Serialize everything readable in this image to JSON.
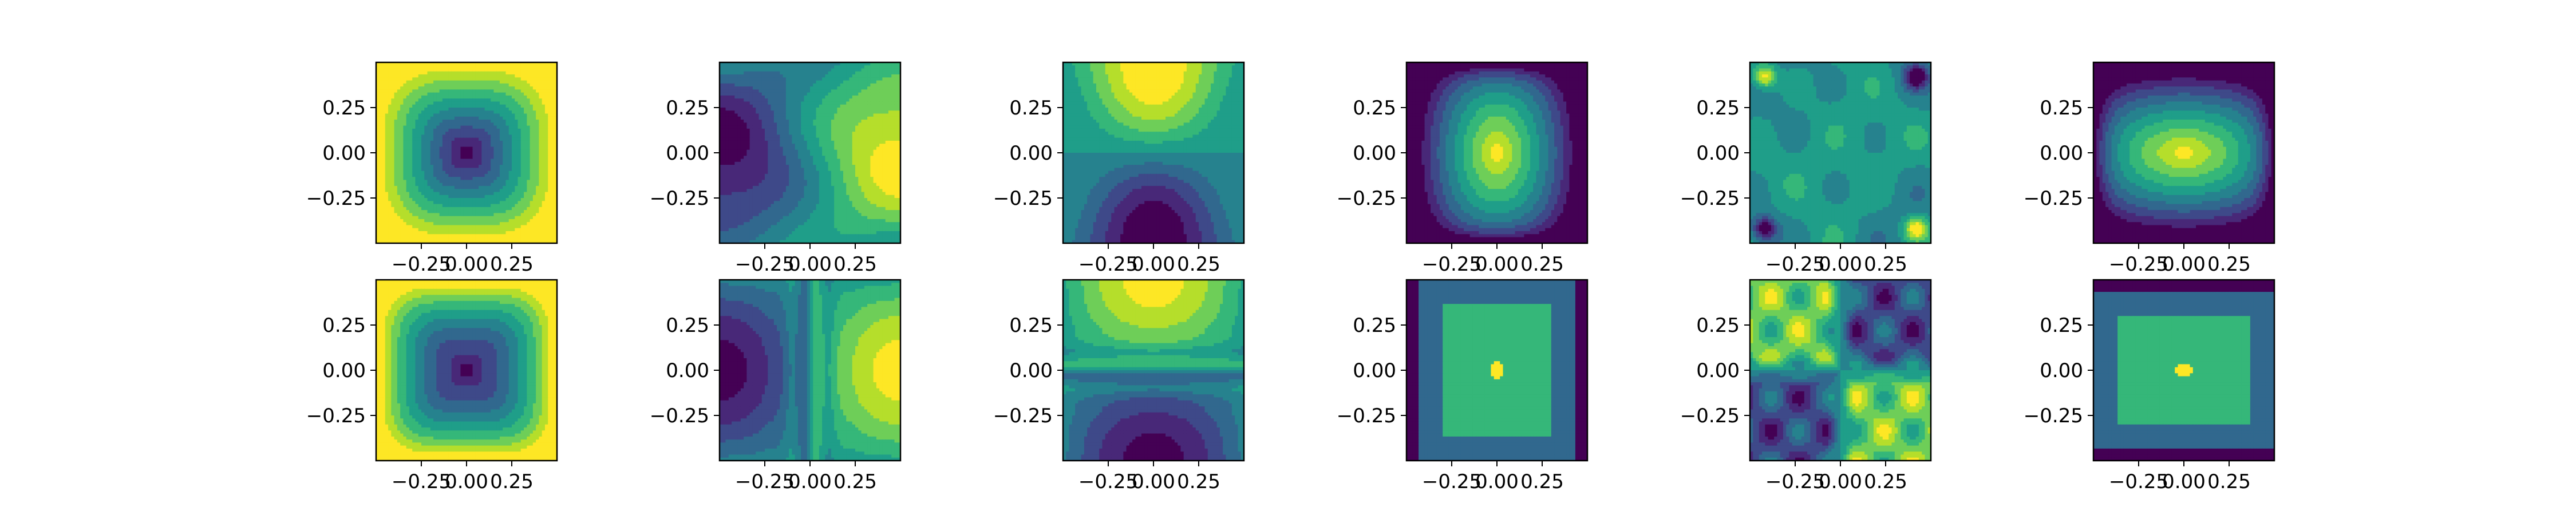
{
  "chart_data": {
    "type": "contour",
    "grid": {
      "rows": 2,
      "cols": 6
    },
    "grid_lines": false,
    "colormap": [
      "#440154",
      "#482878",
      "#3e4989",
      "#31688e",
      "#26828e",
      "#1f9e89",
      "#35b779",
      "#6ece58",
      "#b5de2b",
      "#fde725"
    ],
    "xlim": [
      -0.5,
      0.5
    ],
    "ylim": [
      -0.5,
      0.5
    ],
    "x_ticks": [
      -0.25,
      0.0,
      0.25
    ],
    "x_tick_labels": [
      "−0.25",
      "0.00",
      "0.25"
    ],
    "y_ticks": [
      0.25,
      0.0,
      -0.25
    ],
    "y_tick_labels": [
      "0.25",
      "0.00",
      "−0.25"
    ],
    "panels": [
      {
        "row": 0,
        "col": 0,
        "pattern": "bowl"
      },
      {
        "row": 0,
        "col": 1,
        "pattern": "x-dipole"
      },
      {
        "row": 0,
        "col": 2,
        "pattern": "y-dipole"
      },
      {
        "row": 0,
        "col": 3,
        "pattern": "dome"
      },
      {
        "row": 0,
        "col": 4,
        "pattern": "corner-noise"
      },
      {
        "row": 0,
        "col": 5,
        "pattern": "dome-y"
      },
      {
        "row": 1,
        "col": 0,
        "pattern": "bowl-framed"
      },
      {
        "row": 1,
        "col": 1,
        "pattern": "x-dipole-stripe"
      },
      {
        "row": 1,
        "col": 2,
        "pattern": "y-dipole-stripe"
      },
      {
        "row": 1,
        "col": 3,
        "pattern": "plateau"
      },
      {
        "row": 1,
        "col": 4,
        "pattern": "quadrant"
      },
      {
        "row": 1,
        "col": 5,
        "pattern": "plateau-y"
      }
    ]
  }
}
